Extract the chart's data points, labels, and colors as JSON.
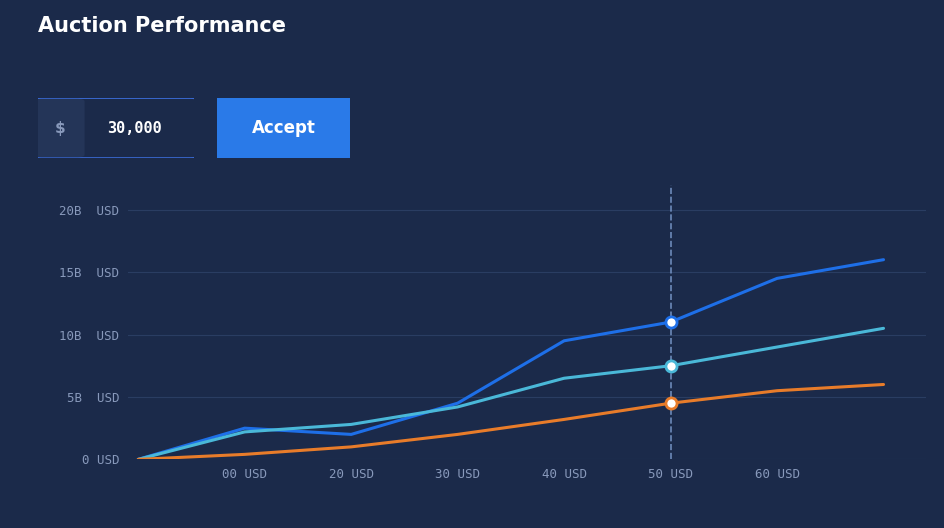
{
  "background_color": "#1b2a4a",
  "title": "Auction Performance",
  "title_color": "#ffffff",
  "title_fontsize": 15,
  "x_tick_labels": [
    "00 USD",
    "20 USD",
    "30 USD",
    "40 USD",
    "50 USD",
    "60 USD"
  ],
  "y_ticks": [
    0,
    5,
    10,
    15,
    20
  ],
  "y_tick_labels": [
    "0 USD",
    "5B  USD",
    "10B  USD",
    "15B  USD",
    "20B  USD"
  ],
  "x_values": [
    0,
    10,
    20,
    30,
    40,
    50,
    60,
    70
  ],
  "line1_values": [
    0,
    2.5,
    2.0,
    4.5,
    9.5,
    11.0,
    14.5,
    16.0
  ],
  "line2_values": [
    0,
    2.2,
    2.8,
    4.2,
    6.5,
    7.5,
    9.0,
    10.5
  ],
  "line3_values": [
    0,
    0.4,
    1.0,
    2.0,
    3.2,
    4.5,
    5.5,
    6.0
  ],
  "line1_color": "#1e6fe8",
  "line2_color": "#4ab8d8",
  "line3_color": "#e87c2a",
  "vline_x": 50,
  "marker_y1": 11.0,
  "marker_y2": 7.5,
  "marker_y3": 4.5,
  "grid_color": "#2a3d62",
  "axis_label_color": "#8899bb",
  "ylim": [
    0,
    22
  ],
  "xlim": [
    -1,
    74
  ],
  "input_bg": "#1b2a4a",
  "input_border": "#3a6ad4",
  "input_dollar_bg": "#243558",
  "accept_color": "#2a7ae8",
  "marker_fill": "#ffffff"
}
